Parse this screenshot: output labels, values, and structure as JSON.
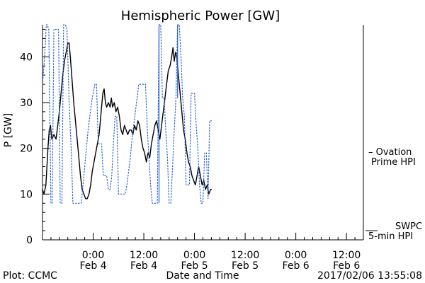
{
  "chart_data": {
    "type": "line",
    "title": "Hemispheric Power [GW]",
    "ylabel": "P [GW]",
    "xlabel": "Date and Time",
    "ylim": [
      0,
      47
    ],
    "y_ticks": [
      0,
      10,
      20,
      30,
      40
    ],
    "x_range_hours_from_feb3_noon": [
      0,
      40
    ],
    "x_ticks": [
      {
        "t": 12,
        "time": "0:00",
        "date": "Feb 4"
      },
      {
        "t": 24,
        "time": "12:00",
        "date": "Feb 4"
      },
      {
        "t": 36,
        "time": "0:00",
        "date": "Feb 5"
      },
      {
        "t": 48,
        "time": "12:00",
        "date": "Feb 5"
      },
      {
        "t": 60,
        "time": "0:00",
        "date": "Feb 6"
      },
      {
        "t": 72,
        "time": "12:00",
        "date": "Feb 6"
      }
    ],
    "series": [
      {
        "name": "SWPC 5-min HPI",
        "style": "solid",
        "color": "#000000",
        "points": [
          [
            0.0,
            11
          ],
          [
            0.35,
            10
          ],
          [
            0.8,
            12
          ],
          [
            1.3,
            20
          ],
          [
            1.6,
            24
          ],
          [
            1.9,
            25
          ],
          [
            2.2,
            22
          ],
          [
            2.7,
            23
          ],
          [
            3.2,
            22
          ],
          [
            3.6,
            25
          ],
          [
            4.0,
            28
          ],
          [
            4.4,
            32
          ],
          [
            4.8,
            36
          ],
          [
            5.2,
            39
          ],
          [
            5.6,
            41
          ],
          [
            6.0,
            43
          ],
          [
            6.3,
            43
          ],
          [
            6.6,
            40
          ],
          [
            7.0,
            35
          ],
          [
            7.4,
            30
          ],
          [
            7.8,
            26
          ],
          [
            8.2,
            22
          ],
          [
            8.6,
            18
          ],
          [
            9.0,
            14
          ],
          [
            9.4,
            11
          ],
          [
            9.8,
            10
          ],
          [
            10.2,
            9
          ],
          [
            10.6,
            9
          ],
          [
            11.0,
            10
          ],
          [
            11.4,
            12
          ],
          [
            11.8,
            15
          ],
          [
            12.2,
            17
          ],
          [
            12.6,
            19
          ],
          [
            13.0,
            21
          ],
          [
            13.4,
            23
          ],
          [
            13.7,
            26
          ],
          [
            14.0,
            29
          ],
          [
            14.3,
            32
          ],
          [
            14.6,
            33
          ],
          [
            14.9,
            30
          ],
          [
            15.2,
            29
          ],
          [
            15.6,
            30
          ],
          [
            16.0,
            29
          ],
          [
            16.3,
            31
          ],
          [
            16.6,
            29
          ],
          [
            17.0,
            30
          ],
          [
            17.4,
            28
          ],
          [
            17.8,
            29
          ],
          [
            18.2,
            27
          ],
          [
            18.6,
            24
          ],
          [
            19.0,
            23
          ],
          [
            19.4,
            25
          ],
          [
            19.8,
            24
          ],
          [
            20.2,
            23
          ],
          [
            20.6,
            24
          ],
          [
            21.0,
            24
          ],
          [
            21.4,
            23
          ],
          [
            21.8,
            25
          ],
          [
            22.2,
            24
          ],
          [
            22.6,
            26
          ],
          [
            23.0,
            25
          ],
          [
            23.4,
            22
          ],
          [
            23.8,
            20
          ],
          [
            24.2,
            19
          ],
          [
            24.6,
            17
          ],
          [
            25.0,
            19
          ],
          [
            25.4,
            18
          ],
          [
            25.8,
            21
          ],
          [
            26.2,
            23
          ],
          [
            26.6,
            25
          ],
          [
            27.0,
            26
          ],
          [
            27.4,
            24
          ],
          [
            27.8,
            22
          ],
          [
            28.2,
            25
          ],
          [
            28.6,
            28
          ],
          [
            29.0,
            31
          ],
          [
            29.4,
            34
          ],
          [
            29.8,
            37
          ],
          [
            30.2,
            38
          ],
          [
            30.6,
            40
          ],
          [
            30.9,
            42
          ],
          [
            31.2,
            39
          ],
          [
            31.5,
            41
          ],
          [
            31.8,
            40
          ],
          [
            32.2,
            36
          ],
          [
            32.6,
            32
          ],
          [
            33.0,
            28
          ],
          [
            33.4,
            24
          ],
          [
            33.8,
            22
          ],
          [
            34.2,
            19
          ],
          [
            34.6,
            17
          ],
          [
            35.0,
            16
          ],
          [
            35.4,
            14
          ],
          [
            35.8,
            13
          ],
          [
            36.2,
            12
          ],
          [
            36.6,
            14
          ],
          [
            37.0,
            16
          ],
          [
            37.4,
            14
          ],
          [
            37.8,
            12
          ],
          [
            38.2,
            13
          ],
          [
            38.6,
            11
          ],
          [
            39.0,
            12
          ],
          [
            39.4,
            10
          ],
          [
            39.8,
            11
          ],
          [
            40.0,
            11
          ]
        ]
      },
      {
        "name": "Ovation Prime HPI",
        "style": "dotted",
        "color": "#2a62d4",
        "points": [
          [
            0.0,
            34
          ],
          [
            0.5,
            40
          ],
          [
            0.9,
            47
          ],
          [
            1.1,
            47
          ],
          [
            1.5,
            46
          ],
          [
            2.0,
            8
          ],
          [
            2.3,
            8
          ],
          [
            2.7,
            46
          ],
          [
            3.2,
            46
          ],
          [
            3.8,
            46
          ],
          [
            4.2,
            8
          ],
          [
            4.6,
            8
          ],
          [
            5.0,
            47
          ],
          [
            5.4,
            47
          ],
          [
            5.8,
            46
          ],
          [
            6.3,
            30
          ],
          [
            6.8,
            20
          ],
          [
            7.2,
            8
          ],
          [
            7.6,
            8
          ],
          [
            8.0,
            8
          ],
          [
            8.4,
            8
          ],
          [
            8.8,
            8
          ],
          [
            9.2,
            8
          ],
          [
            9.6,
            12
          ],
          [
            10.0,
            16
          ],
          [
            10.4,
            20
          ],
          [
            10.8,
            24
          ],
          [
            11.2,
            27
          ],
          [
            11.6,
            30
          ],
          [
            12.0,
            32
          ],
          [
            12.4,
            34
          ],
          [
            12.8,
            34
          ],
          [
            13.2,
            21
          ],
          [
            13.6,
            21
          ],
          [
            14.0,
            21
          ],
          [
            14.4,
            14
          ],
          [
            14.8,
            14
          ],
          [
            15.2,
            14
          ],
          [
            15.6,
            11
          ],
          [
            16.0,
            11
          ],
          [
            16.4,
            14
          ],
          [
            16.8,
            21
          ],
          [
            17.2,
            27
          ],
          [
            17.6,
            27
          ],
          [
            18.0,
            10
          ],
          [
            18.4,
            10
          ],
          [
            18.8,
            10
          ],
          [
            19.2,
            10
          ],
          [
            19.6,
            10
          ],
          [
            20.0,
            12
          ],
          [
            20.4,
            15
          ],
          [
            20.8,
            18
          ],
          [
            21.2,
            22
          ],
          [
            21.6,
            25
          ],
          [
            22.0,
            28
          ],
          [
            22.4,
            31
          ],
          [
            22.8,
            34
          ],
          [
            23.2,
            34
          ],
          [
            23.6,
            34
          ],
          [
            24.0,
            34
          ],
          [
            24.4,
            34
          ],
          [
            24.8,
            25
          ],
          [
            25.2,
            18
          ],
          [
            25.6,
            12
          ],
          [
            26.0,
            8
          ],
          [
            26.4,
            8
          ],
          [
            26.8,
            8
          ],
          [
            27.2,
            8
          ],
          [
            27.6,
            47
          ],
          [
            28.0,
            47
          ],
          [
            28.4,
            31
          ],
          [
            28.8,
            31
          ],
          [
            29.2,
            24
          ],
          [
            29.6,
            18
          ],
          [
            30.0,
            8
          ],
          [
            30.4,
            8
          ],
          [
            30.8,
            16
          ],
          [
            31.2,
            24
          ],
          [
            31.6,
            31
          ],
          [
            32.0,
            47
          ],
          [
            32.4,
            47
          ],
          [
            32.8,
            40
          ],
          [
            33.2,
            31
          ],
          [
            33.6,
            27
          ],
          [
            34.0,
            12
          ],
          [
            34.4,
            12
          ],
          [
            34.8,
            12
          ],
          [
            35.2,
            32
          ],
          [
            35.6,
            32
          ],
          [
            36.0,
            32
          ],
          [
            36.4,
            25
          ],
          [
            36.8,
            20
          ],
          [
            37.2,
            12
          ],
          [
            37.6,
            8
          ],
          [
            38.0,
            8
          ],
          [
            38.4,
            19
          ],
          [
            38.8,
            19
          ],
          [
            39.2,
            9
          ],
          [
            39.6,
            26
          ],
          [
            40.0,
            26
          ]
        ]
      }
    ],
    "step_segments": [
      {
        "t": 27.6,
        "from": 8,
        "to": 47
      },
      {
        "t": 32.0,
        "from": 31,
        "to": 47
      }
    ],
    "legend": [
      {
        "label_line1": "– Ovation",
        "label_line2": "Prime HPI",
        "color": "#2a62d4"
      },
      {
        "label_line1": "SWPC",
        "label_line2": "5-min HPI",
        "color": "#000000"
      }
    ],
    "footer_left": "Plot: CCMC",
    "footer_right": "2017/02/06 13:55:08"
  }
}
